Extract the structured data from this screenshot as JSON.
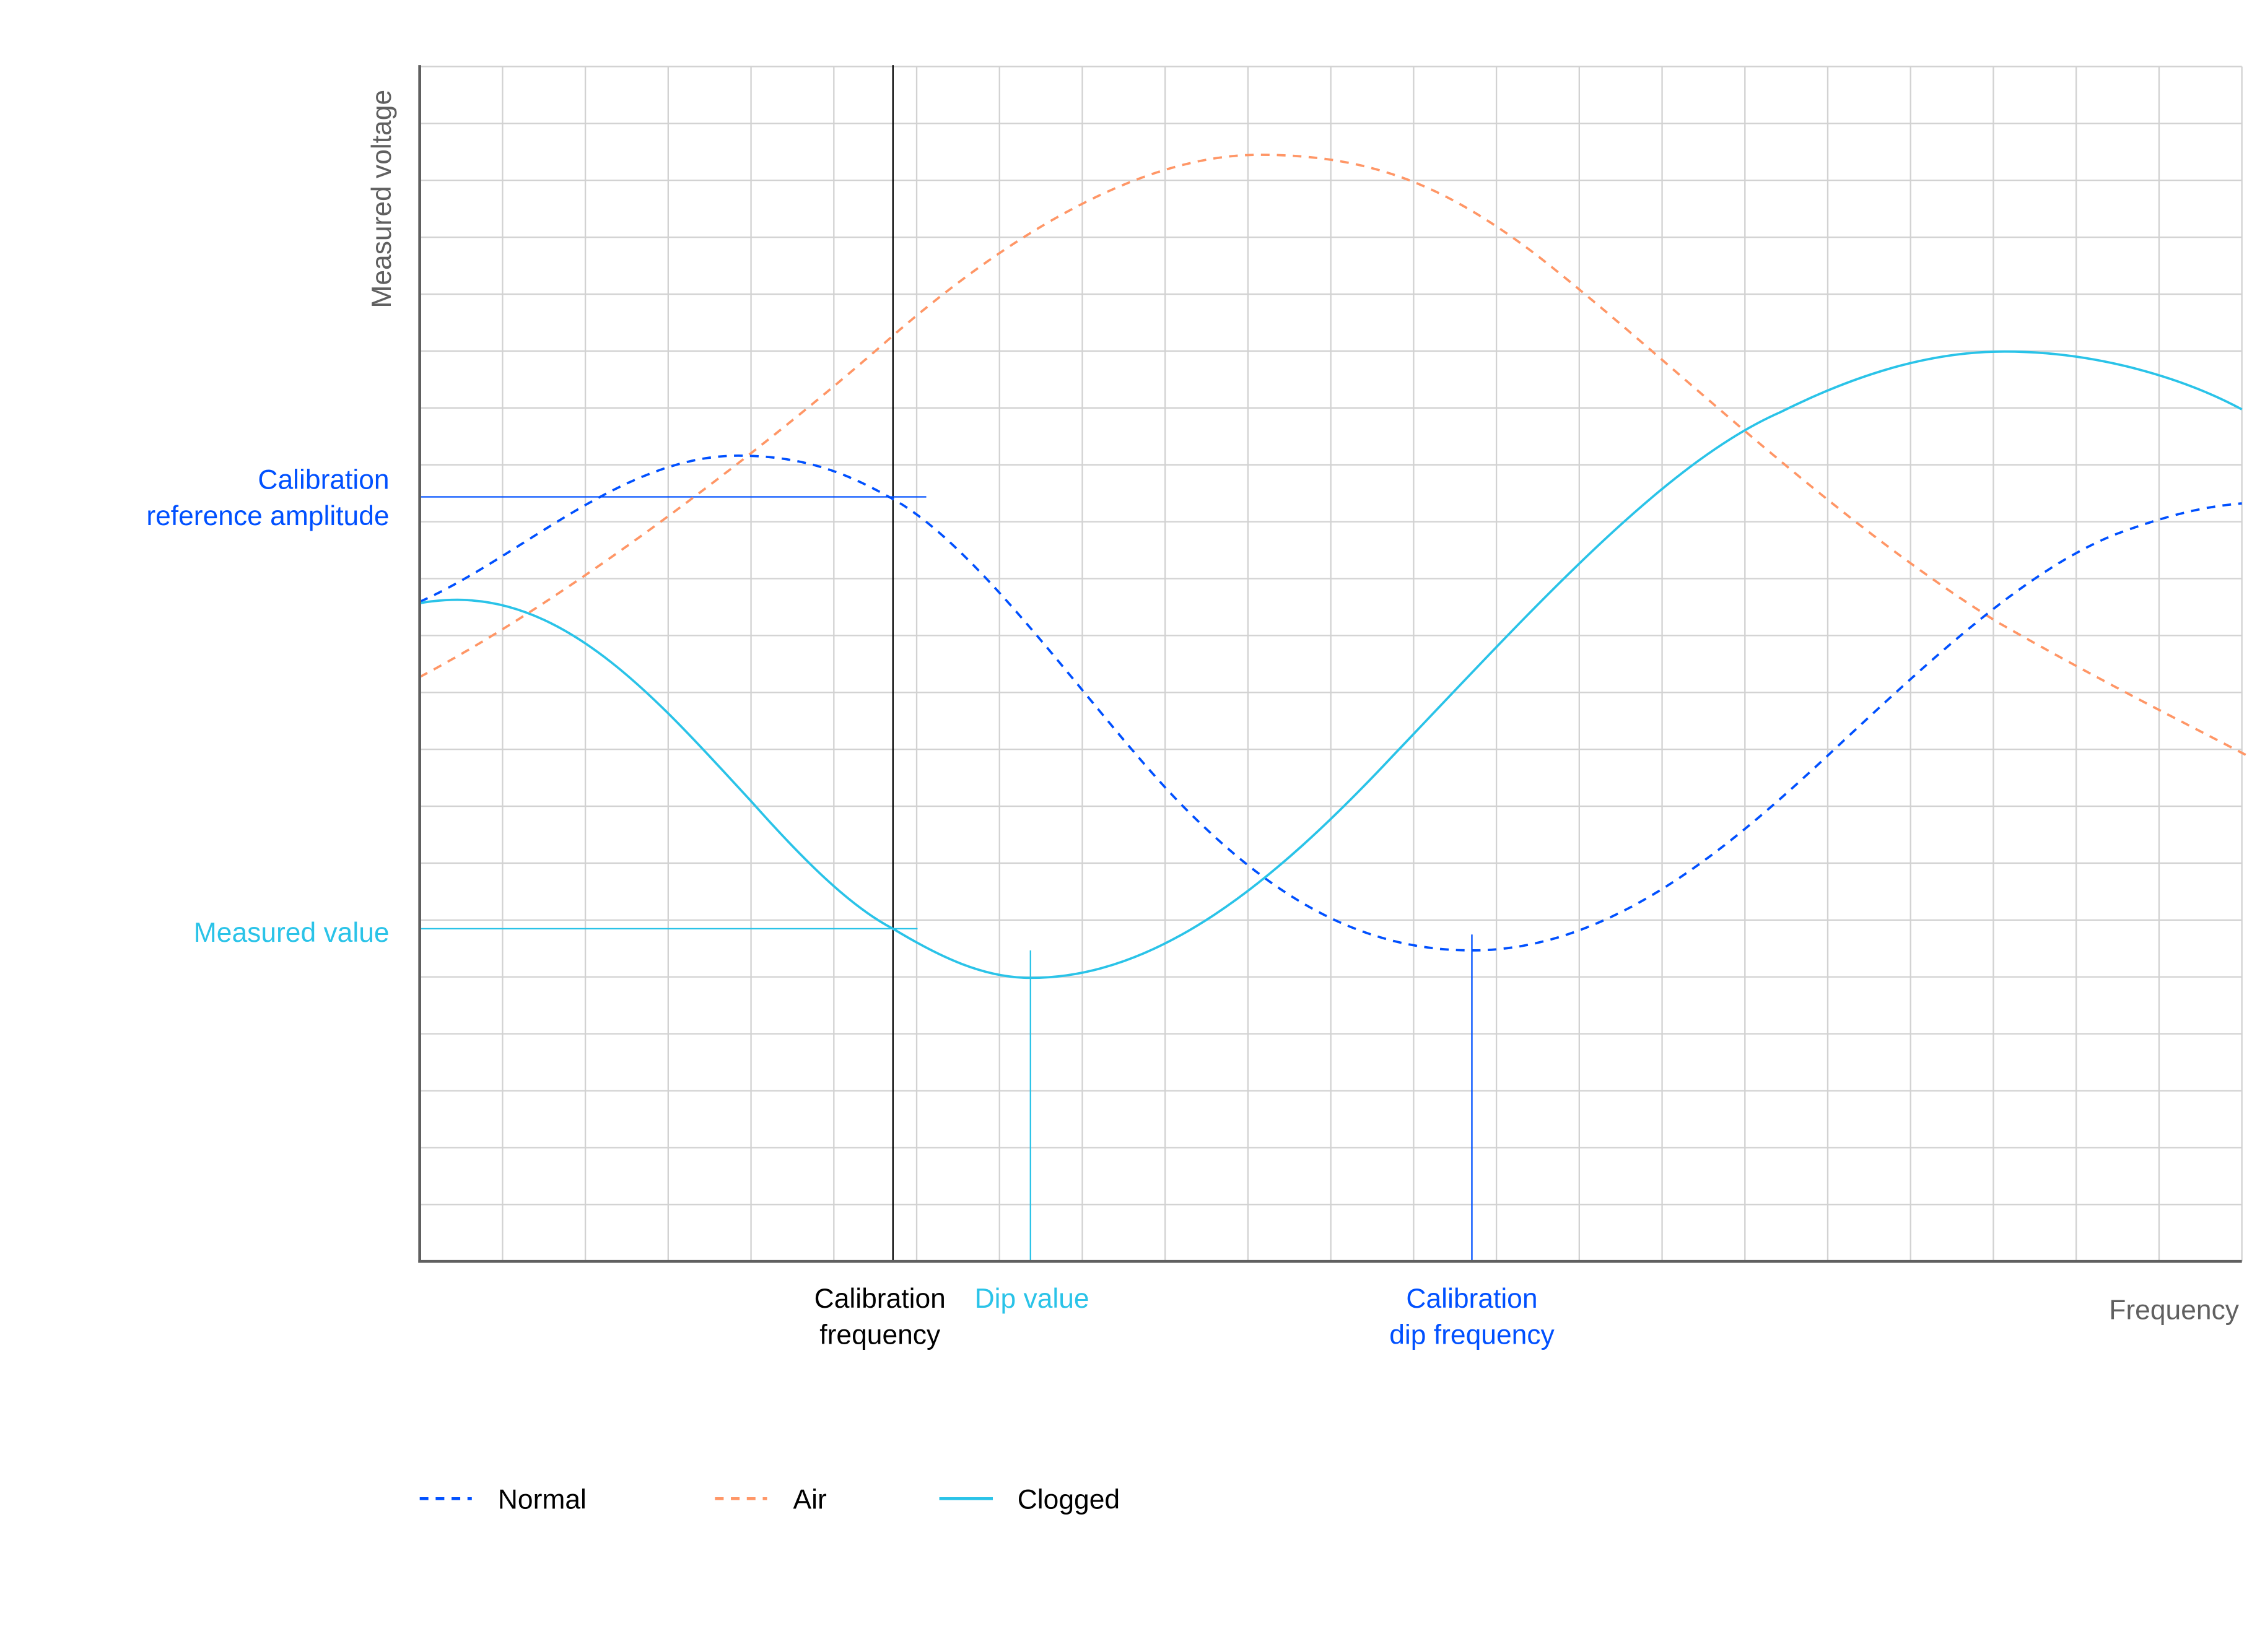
{
  "chart_data": {
    "type": "line",
    "title": "",
    "xlabel": "Frequency",
    "ylabel": "Measured voltage",
    "grid": true,
    "xlim": [
      0,
      22
    ],
    "ylim": [
      0,
      21
    ],
    "x_ticks": [],
    "y_ticks": [],
    "legend_position": "bottom-left",
    "series": [
      {
        "name": "Normal",
        "style": "dashed",
        "color": "#0050FF",
        "points": [
          [
            0,
            11.65
          ],
          [
            3.85,
            14.2
          ],
          [
            5.72,
            13.45
          ],
          [
            8,
            9.9
          ],
          [
            12.7,
            5.55
          ],
          [
            15.5,
            7.8
          ],
          [
            19,
            11.9
          ],
          [
            22,
            13.35
          ]
        ]
      },
      {
        "name": "Air",
        "style": "dashed",
        "color": "#FF9666",
        "points": [
          [
            0,
            10.3
          ],
          [
            5.72,
            16.4
          ],
          [
            10.15,
            19.5
          ],
          [
            13,
            18.0
          ],
          [
            16.5,
            12.8
          ],
          [
            19.2,
            10.9
          ],
          [
            22,
            8.9
          ]
        ]
      },
      {
        "name": "Clogged",
        "style": "solid",
        "color": "#2AC3E8",
        "points": [
          [
            0,
            11.6
          ],
          [
            0.5,
            11.65
          ],
          [
            3,
            7.7
          ],
          [
            5.72,
            5.9
          ],
          [
            7.38,
            5.0
          ],
          [
            10,
            6.5
          ],
          [
            14,
            11.6
          ],
          [
            16.5,
            14.0
          ],
          [
            19.2,
            16.0
          ],
          [
            22,
            15.1
          ]
        ]
      }
    ],
    "annotations": [
      {
        "text": "Calibration reference amplitude",
        "type": "hline",
        "y": 13.45,
        "color": "#0050FF"
      },
      {
        "text": "Measured value",
        "type": "hline",
        "y": 5.9,
        "color": "#2AC3E8"
      },
      {
        "text": "Calibration frequency",
        "type": "vline",
        "x": 5.72,
        "color": "#000000"
      },
      {
        "text": "Dip value",
        "type": "vline",
        "x": 7.38,
        "color": "#2AC3E8"
      },
      {
        "text": "Calibration dip frequency",
        "type": "vline",
        "x": 12.7,
        "color": "#0050FF"
      }
    ]
  },
  "axes": {
    "y_title": "Measured voltage",
    "x_title": "Frequency"
  },
  "labels": {
    "ref_amp_line1": "Calibration",
    "ref_amp_line2": "reference amplitude",
    "measured_value": "Measured value",
    "cal_freq_line1": "Calibration",
    "cal_freq_line2": "frequency",
    "dip_value": "Dip value",
    "cal_dip_line1": "Calibration",
    "cal_dip_line2": "dip frequency"
  },
  "legend": [
    {
      "label": "Normal",
      "color": "#0050FF",
      "style": "dashed"
    },
    {
      "label": "Air",
      "color": "#FF9666",
      "style": "dashed"
    },
    {
      "label": "Clogged",
      "color": "#2AC3E8",
      "style": "solid"
    }
  ],
  "colors": {
    "normal": "#0050FF",
    "air": "#FF9666",
    "clogged": "#2AC3E8",
    "axis": "#606060",
    "grid": "#D0D0D0",
    "axis_label": "#606060"
  }
}
